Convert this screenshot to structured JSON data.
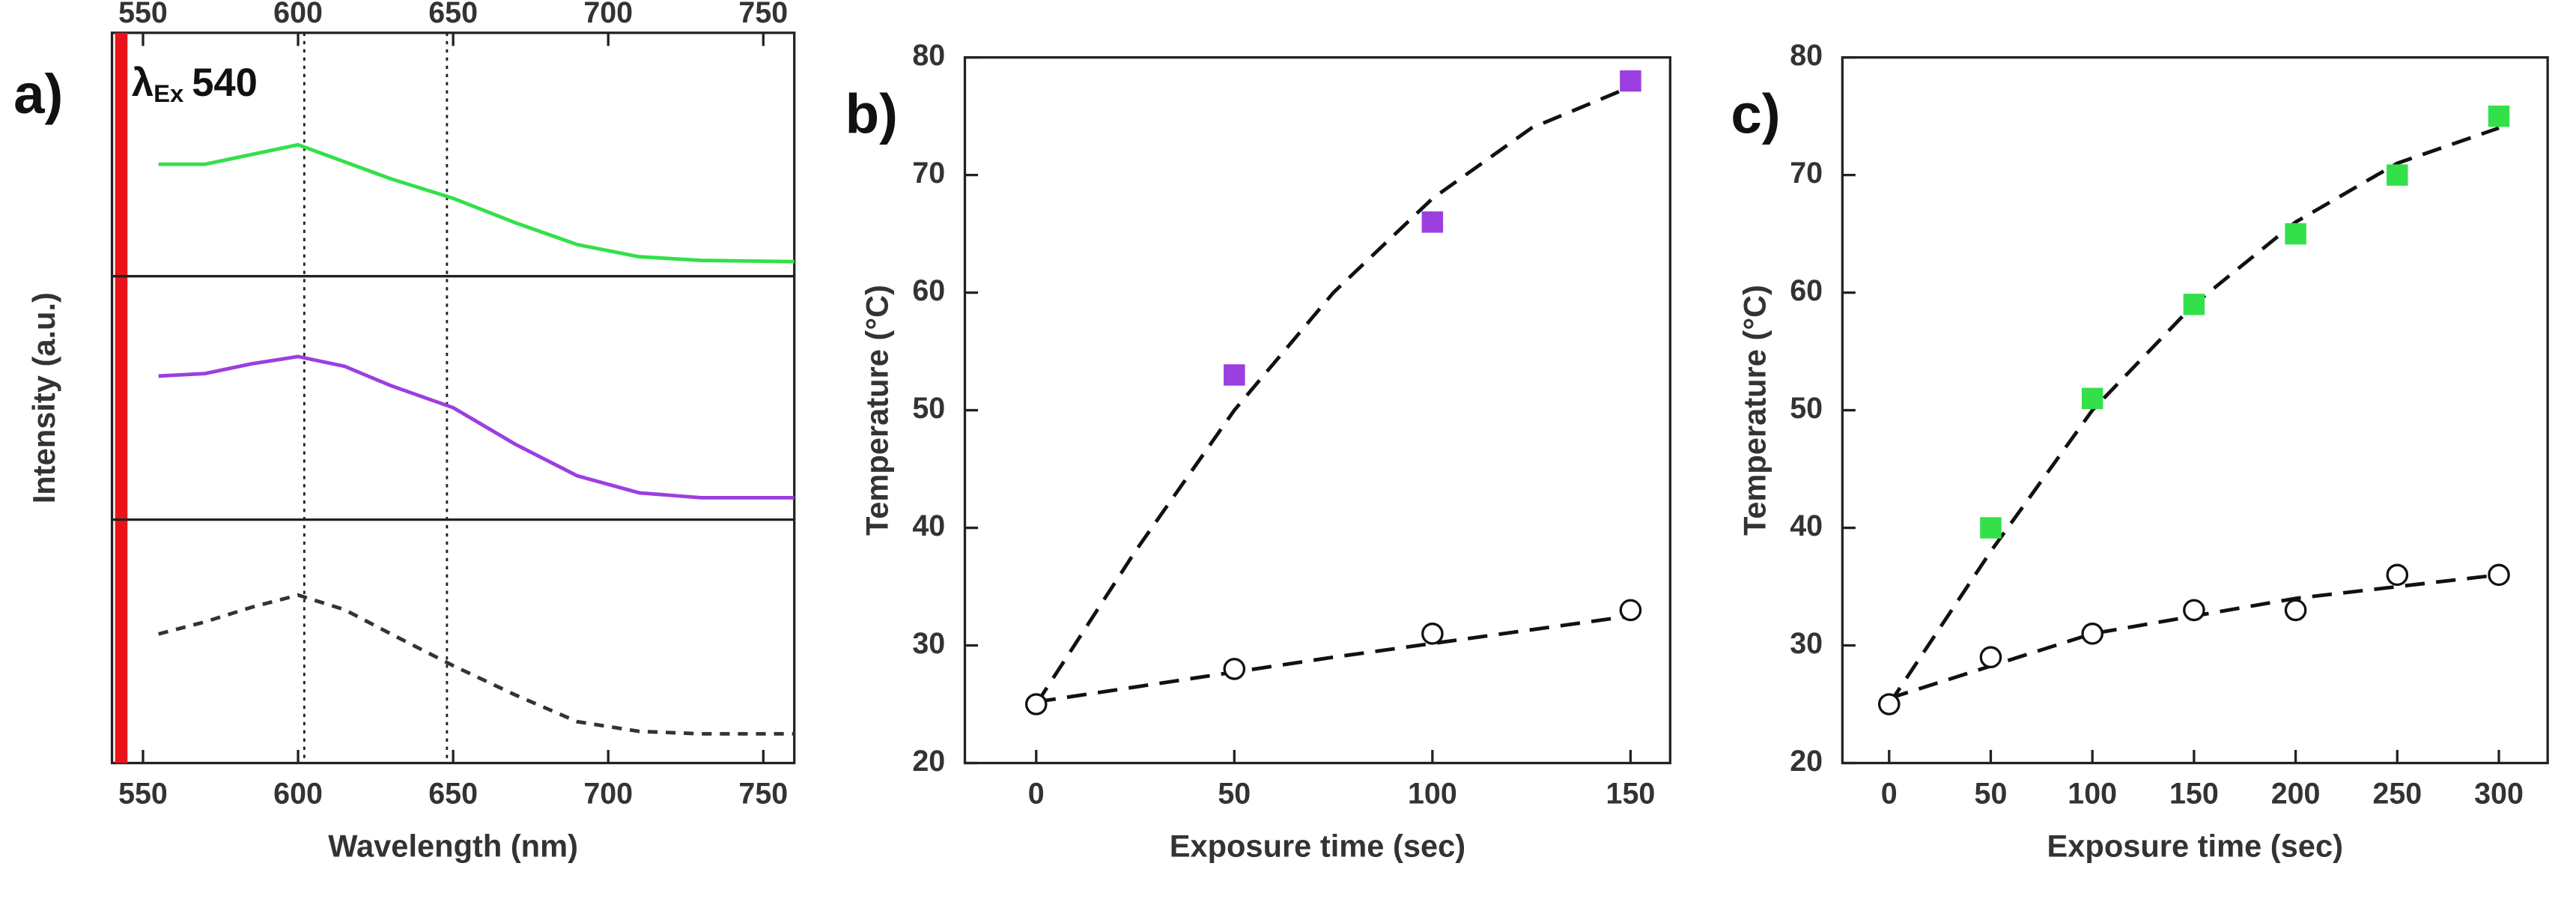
{
  "chart_data": [
    {
      "type": "line",
      "panel": "a)",
      "xlabel": "Wavelength (nm)",
      "ylabel": "Intensity (a.u.)",
      "xlim": [
        540,
        760
      ],
      "xticks": [
        550,
        600,
        650,
        700,
        750
      ],
      "x2ticks": [
        550,
        600,
        650,
        700,
        750
      ],
      "vlines": [
        602,
        648
      ],
      "excitation_band": [
        541,
        545
      ],
      "excitation_color": "#e8141a",
      "annotation": {
        "symbol": "λ",
        "subscript": "Ex",
        "text": "540"
      },
      "series": [
        {
          "color": "#33e04a",
          "dash": false,
          "x": [
            555,
            570,
            585,
            600,
            615,
            630,
            650,
            670,
            690,
            710,
            730,
            760
          ],
          "values": [
            0.46,
            0.46,
            0.5,
            0.54,
            0.47,
            0.4,
            0.32,
            0.22,
            0.13,
            0.08,
            0.065,
            0.06
          ]
        },
        {
          "color": "#9b3fe0",
          "dash": false,
          "x": [
            555,
            570,
            585,
            600,
            615,
            630,
            650,
            670,
            690,
            710,
            730,
            760
          ],
          "values": [
            0.59,
            0.6,
            0.64,
            0.67,
            0.63,
            0.55,
            0.46,
            0.31,
            0.18,
            0.11,
            0.09,
            0.09
          ]
        },
        {
          "color": "#333333",
          "dash": true,
          "x": [
            555,
            570,
            585,
            600,
            615,
            630,
            650,
            670,
            690,
            710,
            730,
            760
          ],
          "values": [
            0.53,
            0.58,
            0.64,
            0.69,
            0.63,
            0.53,
            0.4,
            0.28,
            0.17,
            0.13,
            0.12,
            0.12
          ]
        }
      ]
    },
    {
      "type": "scatter",
      "panel": "b)",
      "xlabel": "Exposure time (sec)",
      "ylabel": "Temperature (°C)",
      "xlim": [
        -18,
        160
      ],
      "xticks": [
        0,
        50,
        100,
        150
      ],
      "ylim": [
        20,
        80
      ],
      "yticks": [
        20,
        30,
        40,
        50,
        60,
        70,
        80
      ],
      "series": [
        {
          "marker": "none",
          "color": "#111111",
          "x": [
            0,
            25,
            50,
            75,
            100,
            125,
            150
          ],
          "values": [
            25,
            38,
            50,
            60,
            68,
            74,
            77.5
          ]
        },
        {
          "marker": "none",
          "color": "#111111",
          "x": [
            0,
            75,
            150
          ],
          "values": [
            25.2,
            29,
            32.5
          ]
        },
        {
          "marker": "square",
          "color": "#9b3fe0",
          "x": [
            50,
            100,
            150
          ],
          "values": [
            53,
            66,
            78
          ]
        },
        {
          "marker": "circle",
          "color": "#111111",
          "x": [
            0,
            50,
            100,
            150
          ],
          "values": [
            25,
            28,
            31,
            33
          ]
        }
      ]
    },
    {
      "type": "scatter",
      "panel": "c)",
      "xlabel": "Exposure time (sec)",
      "ylabel": "Temperature (°C)",
      "xlim": [
        -23,
        324
      ],
      "xticks": [
        0,
        50,
        100,
        150,
        200,
        250,
        300
      ],
      "ylim": [
        20,
        80
      ],
      "yticks": [
        20,
        30,
        40,
        50,
        60,
        70,
        80
      ],
      "series": [
        {
          "marker": "none",
          "color": "#111111",
          "x": [
            0,
            50,
            100,
            150,
            200,
            250,
            300
          ],
          "values": [
            25,
            38,
            50,
            59,
            66,
            71,
            74
          ]
        },
        {
          "marker": "none",
          "color": "#111111",
          "x": [
            0,
            100,
            200,
            300
          ],
          "values": [
            25.5,
            31,
            34,
            36
          ]
        },
        {
          "marker": "square",
          "color": "#33e04a",
          "x": [
            50,
            100,
            150,
            200,
            250,
            300
          ],
          "values": [
            40,
            51,
            59,
            65,
            70,
            75
          ]
        },
        {
          "marker": "circle",
          "color": "#111111",
          "x": [
            0,
            50,
            100,
            150,
            200,
            250,
            300
          ],
          "values": [
            25,
            29,
            31,
            33,
            33,
            36,
            36
          ]
        }
      ]
    }
  ]
}
